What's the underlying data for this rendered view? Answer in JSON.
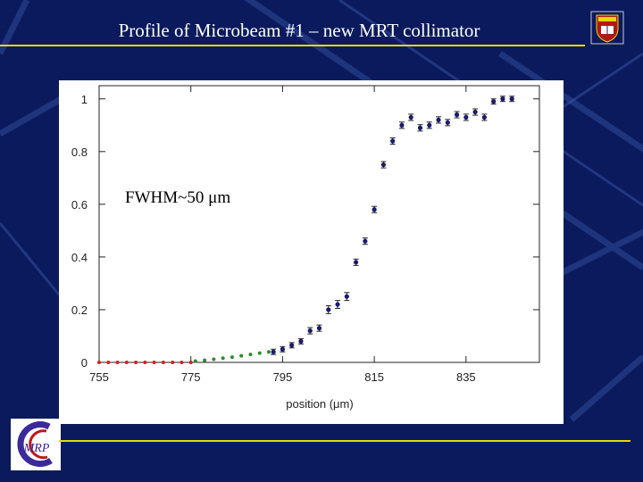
{
  "slide": {
    "title": "Profile of Microbeam #1 – new MRT collimator",
    "logo_text": "MRP"
  },
  "colors": {
    "background": "#0a1a5c",
    "rule": "#e8d800",
    "series_main": "#1a1a6e",
    "series_background": "#d42020",
    "series_tail": "#2e8b2e"
  },
  "chart_data": {
    "type": "scatter",
    "title": "",
    "xlabel": "position (μm)",
    "ylabel": "",
    "xlim": [
      755,
      851
    ],
    "ylim": [
      0,
      1.05
    ],
    "x_ticks": [
      755,
      775,
      795,
      815,
      835
    ],
    "y_ticks": [
      0,
      0.2,
      0.4,
      0.6,
      0.8,
      1
    ],
    "y_tick_labels": [
      "0",
      "0.2",
      "0.4",
      "0.6",
      "0.8",
      "1"
    ],
    "annotation": "FWHM~50 μm",
    "grid": false,
    "series": [
      {
        "color": "#d42020",
        "error_bars": false,
        "x": [
          755,
          757,
          759,
          761,
          763,
          765,
          767,
          769,
          771,
          773,
          775
        ],
        "y": [
          0,
          0,
          0,
          0,
          0,
          0,
          0,
          0,
          0,
          0,
          0
        ]
      },
      {
        "color": "#2e8b2e",
        "error_bars": false,
        "x": [
          776,
          778,
          780,
          782,
          784,
          786,
          788,
          790,
          792
        ],
        "y": [
          0.005,
          0.008,
          0.012,
          0.016,
          0.02,
          0.025,
          0.03,
          0.035,
          0.04
        ]
      },
      {
        "color": "#1a1a6e",
        "error_bars": true,
        "x": [
          793,
          795,
          797,
          799,
          801,
          803,
          805,
          807,
          809,
          811,
          813,
          815,
          817,
          819,
          821,
          823,
          825,
          827,
          829,
          831,
          833,
          835,
          837,
          839,
          841,
          843,
          845
        ],
        "y": [
          0.04,
          0.05,
          0.065,
          0.08,
          0.12,
          0.13,
          0.2,
          0.22,
          0.25,
          0.38,
          0.46,
          0.58,
          0.75,
          0.84,
          0.9,
          0.93,
          0.89,
          0.9,
          0.92,
          0.91,
          0.94,
          0.93,
          0.95,
          0.93,
          0.99,
          1.0,
          1.0
        ],
        "err": [
          0.01,
          0.01,
          0.01,
          0.01,
          0.012,
          0.012,
          0.015,
          0.015,
          0.015,
          0.012,
          0.012,
          0.012,
          0.012,
          0.012,
          0.012,
          0.012,
          0.012,
          0.012,
          0.012,
          0.012,
          0.012,
          0.012,
          0.012,
          0.012,
          0.01,
          0.01,
          0.01
        ]
      }
    ]
  }
}
